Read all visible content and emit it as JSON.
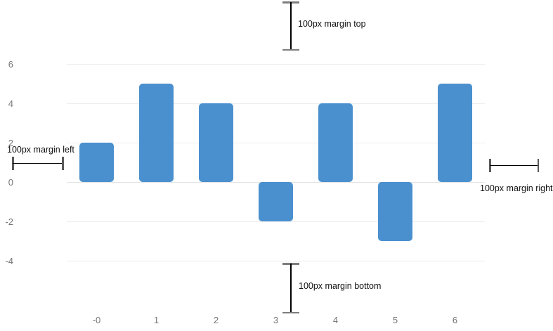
{
  "chart_data": {
    "type": "bar",
    "categories": [
      "-0",
      "1",
      "2",
      "3",
      "4",
      "5",
      "6"
    ],
    "values": [
      2,
      5,
      4,
      -2,
      4,
      -3,
      5
    ],
    "title": "",
    "xlabel": "",
    "ylabel": "",
    "y_ticks": [
      6,
      4,
      2,
      0,
      -2,
      -4
    ],
    "ylim": [
      -4.6,
      6.2
    ],
    "grid": true,
    "legend": false,
    "bar_color": "#4a90ce",
    "gridline_color": "#ededed",
    "tick_label_color": "#757575"
  },
  "annotations": {
    "top": "100px margin top",
    "left": "100px margin left",
    "right": "100px margin right",
    "bottom": "100px margin bottom"
  }
}
